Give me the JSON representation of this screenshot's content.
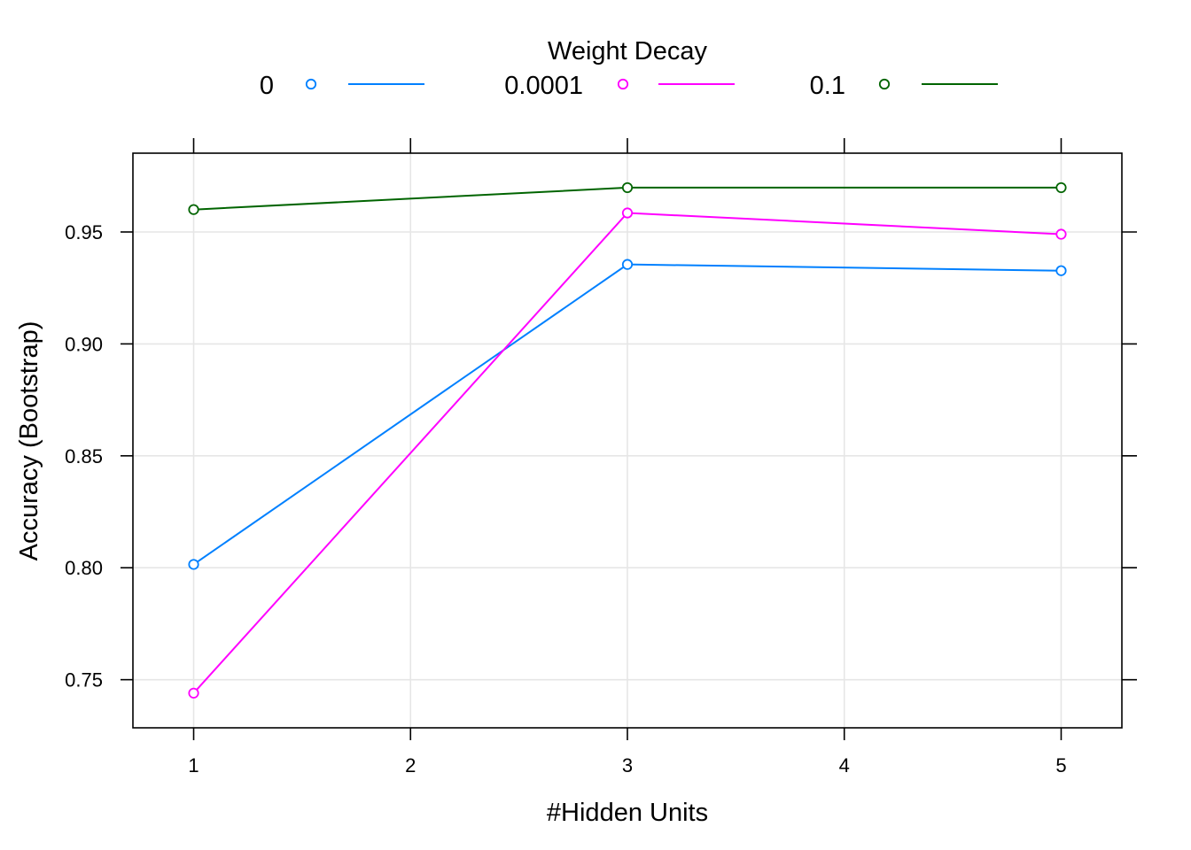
{
  "chart_data": {
    "type": "line",
    "legend": {
      "title": "Weight Decay",
      "placement": "top"
    },
    "xlabel": "#Hidden Units",
    "ylabel": "Accuracy (Bootstrap)",
    "x": [
      1,
      3,
      5
    ],
    "xlim": [
      0.72,
      5.28
    ],
    "ylim": [
      0.7285,
      0.9852
    ],
    "x_ticks": [
      "1",
      "2",
      "3",
      "4",
      "5"
    ],
    "y_ticks": [
      "0.75",
      "0.80",
      "0.85",
      "0.90",
      "0.95"
    ],
    "grid": true,
    "series": [
      {
        "name": "0",
        "color": "#0080ff",
        "values": [
          0.8015,
          0.9355,
          0.9327
        ]
      },
      {
        "name": "0.0001",
        "color": "#ff00ff",
        "values": [
          0.744,
          0.9585,
          0.949
        ]
      },
      {
        "name": "0.1",
        "color": "#006400",
        "values": [
          0.96,
          0.9698,
          0.9698
        ]
      }
    ]
  }
}
